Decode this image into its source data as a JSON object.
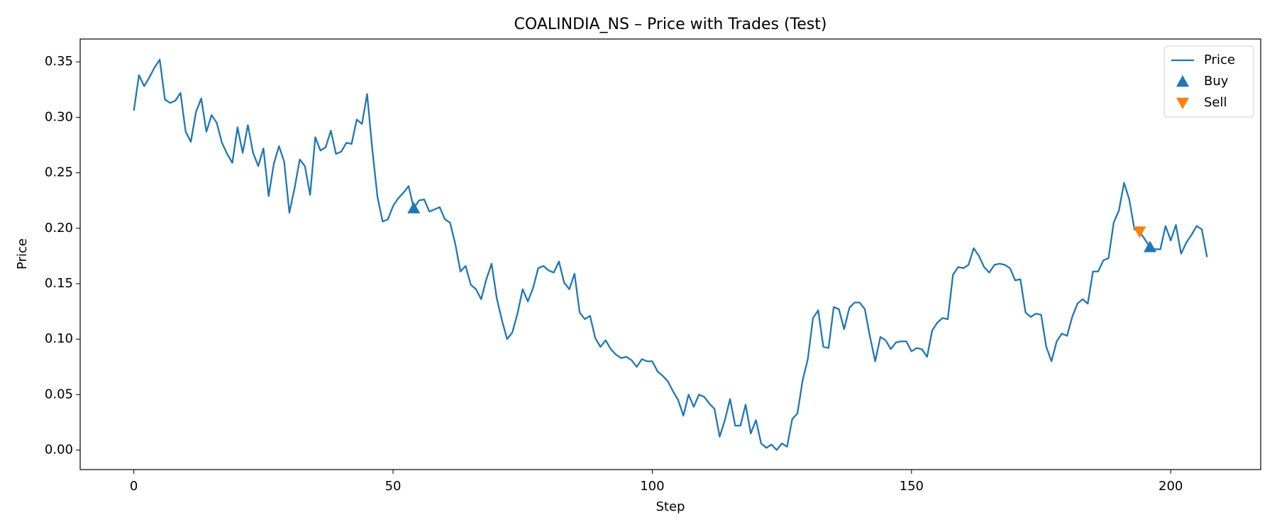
{
  "chart_data": {
    "type": "line",
    "title": "COALINDIA_NS – Price with Trades (Test)",
    "x_label": "Step",
    "y_label": "Price",
    "x": [
      0,
      1,
      2,
      3,
      4,
      5,
      6,
      7,
      8,
      9,
      10,
      11,
      12,
      13,
      14,
      15,
      16,
      17,
      18,
      19,
      20,
      21,
      22,
      23,
      24,
      25,
      26,
      27,
      28,
      29,
      30,
      31,
      32,
      33,
      34,
      35,
      36,
      37,
      38,
      39,
      40,
      41,
      42,
      43,
      44,
      45,
      46,
      47,
      48,
      49,
      50,
      51,
      52,
      53,
      54,
      55,
      56,
      57,
      58,
      59,
      60,
      61,
      62,
      63,
      64,
      65,
      66,
      67,
      68,
      69,
      70,
      71,
      72,
      73,
      74,
      75,
      76,
      77,
      78,
      79,
      80,
      81,
      82,
      83,
      84,
      85,
      86,
      87,
      88,
      89,
      90,
      91,
      92,
      93,
      94,
      95,
      96,
      97,
      98,
      99,
      100,
      101,
      102,
      103,
      104,
      105,
      106,
      107,
      108,
      109,
      110,
      111,
      112,
      113,
      114,
      115,
      116,
      117,
      118,
      119,
      120,
      121,
      122,
      123,
      124,
      125,
      126,
      127,
      128,
      129,
      130,
      131,
      132,
      133,
      134,
      135,
      136,
      137,
      138,
      139,
      140,
      141,
      142,
      143,
      144,
      145,
      146,
      147,
      148,
      149,
      150,
      151,
      152,
      153,
      154,
      155,
      156,
      157,
      158,
      159,
      160,
      161,
      162,
      163,
      164,
      165,
      166,
      167,
      168,
      169,
      170,
      171,
      172,
      173,
      174,
      175,
      176,
      177,
      178,
      179,
      180,
      181,
      182,
      183,
      184,
      185,
      186,
      187,
      188,
      189,
      190,
      191,
      192,
      193,
      194,
      195,
      196,
      197,
      198,
      199,
      200,
      201,
      202,
      203,
      204,
      205,
      206,
      207
    ],
    "series": [
      {
        "name": "Price",
        "type": "line",
        "color": "#1f77b4",
        "values": [
          0.306,
          0.338,
          0.328,
          0.336,
          0.345,
          0.352,
          0.316,
          0.313,
          0.315,
          0.322,
          0.287,
          0.278,
          0.305,
          0.317,
          0.287,
          0.302,
          0.295,
          0.277,
          0.267,
          0.259,
          0.291,
          0.268,
          0.293,
          0.268,
          0.256,
          0.272,
          0.229,
          0.258,
          0.274,
          0.26,
          0.214,
          0.236,
          0.262,
          0.256,
          0.23,
          0.282,
          0.27,
          0.273,
          0.288,
          0.267,
          0.269,
          0.277,
          0.276,
          0.298,
          0.294,
          0.321,
          0.271,
          0.228,
          0.206,
          0.208,
          0.22,
          0.227,
          0.232,
          0.238,
          0.218,
          0.225,
          0.226,
          0.215,
          0.217,
          0.219,
          0.208,
          0.205,
          0.186,
          0.161,
          0.166,
          0.149,
          0.145,
          0.136,
          0.154,
          0.168,
          0.137,
          0.117,
          0.1,
          0.106,
          0.123,
          0.145,
          0.134,
          0.146,
          0.164,
          0.166,
          0.162,
          0.16,
          0.17,
          0.151,
          0.145,
          0.159,
          0.124,
          0.118,
          0.121,
          0.101,
          0.093,
          0.099,
          0.091,
          0.086,
          0.083,
          0.084,
          0.081,
          0.075,
          0.082,
          0.08,
          0.08,
          0.071,
          0.067,
          0.062,
          0.053,
          0.045,
          0.031,
          0.05,
          0.039,
          0.05,
          0.048,
          0.042,
          0.037,
          0.012,
          0.027,
          0.046,
          0.022,
          0.022,
          0.041,
          0.015,
          0.027,
          0.006,
          0.002,
          0.005,
          0.0,
          0.006,
          0.003,
          0.028,
          0.033,
          0.063,
          0.082,
          0.119,
          0.126,
          0.093,
          0.092,
          0.129,
          0.127,
          0.109,
          0.128,
          0.133,
          0.133,
          0.127,
          0.102,
          0.08,
          0.102,
          0.099,
          0.091,
          0.097,
          0.098,
          0.098,
          0.089,
          0.092,
          0.091,
          0.084,
          0.108,
          0.115,
          0.119,
          0.118,
          0.158,
          0.165,
          0.164,
          0.167,
          0.182,
          0.175,
          0.165,
          0.16,
          0.167,
          0.168,
          0.167,
          0.164,
          0.153,
          0.154,
          0.124,
          0.12,
          0.123,
          0.122,
          0.093,
          0.08,
          0.098,
          0.105,
          0.103,
          0.12,
          0.132,
          0.136,
          0.132,
          0.161,
          0.161,
          0.171,
          0.173,
          0.205,
          0.216,
          0.241,
          0.226,
          0.199,
          0.197,
          0.19,
          0.183,
          0.181,
          0.181,
          0.202,
          0.189,
          0.203,
          0.177,
          0.187,
          0.194,
          0.202,
          0.199,
          0.174
        ]
      },
      {
        "name": "Buy",
        "type": "scatter",
        "marker": "triangle-up",
        "color": "#1f77b4",
        "x": [
          54,
          196
        ],
        "values": [
          0.218,
          0.183
        ]
      },
      {
        "name": "Sell",
        "type": "scatter",
        "marker": "triangle-down",
        "color": "#ff7f0e",
        "x": [
          194
        ],
        "values": [
          0.197
        ]
      }
    ],
    "xlim": [
      -10.35,
      217.35
    ],
    "ylim": [
      -0.0176,
      0.3706
    ],
    "xticks": [
      0,
      50,
      100,
      150,
      200
    ],
    "yticks": [
      {
        "value": 0,
        "label": "0.00"
      },
      {
        "value": 0.05,
        "label": "0.05"
      },
      {
        "value": 0.1,
        "label": "0.10"
      },
      {
        "value": 0.15,
        "label": "0.15"
      },
      {
        "value": 0.2,
        "label": "0.20"
      },
      {
        "value": 0.25,
        "label": "0.25"
      },
      {
        "value": 0.3,
        "label": "0.30"
      },
      {
        "value": 0.35,
        "label": "0.35"
      }
    ],
    "grid": false,
    "legend": "upper right"
  }
}
